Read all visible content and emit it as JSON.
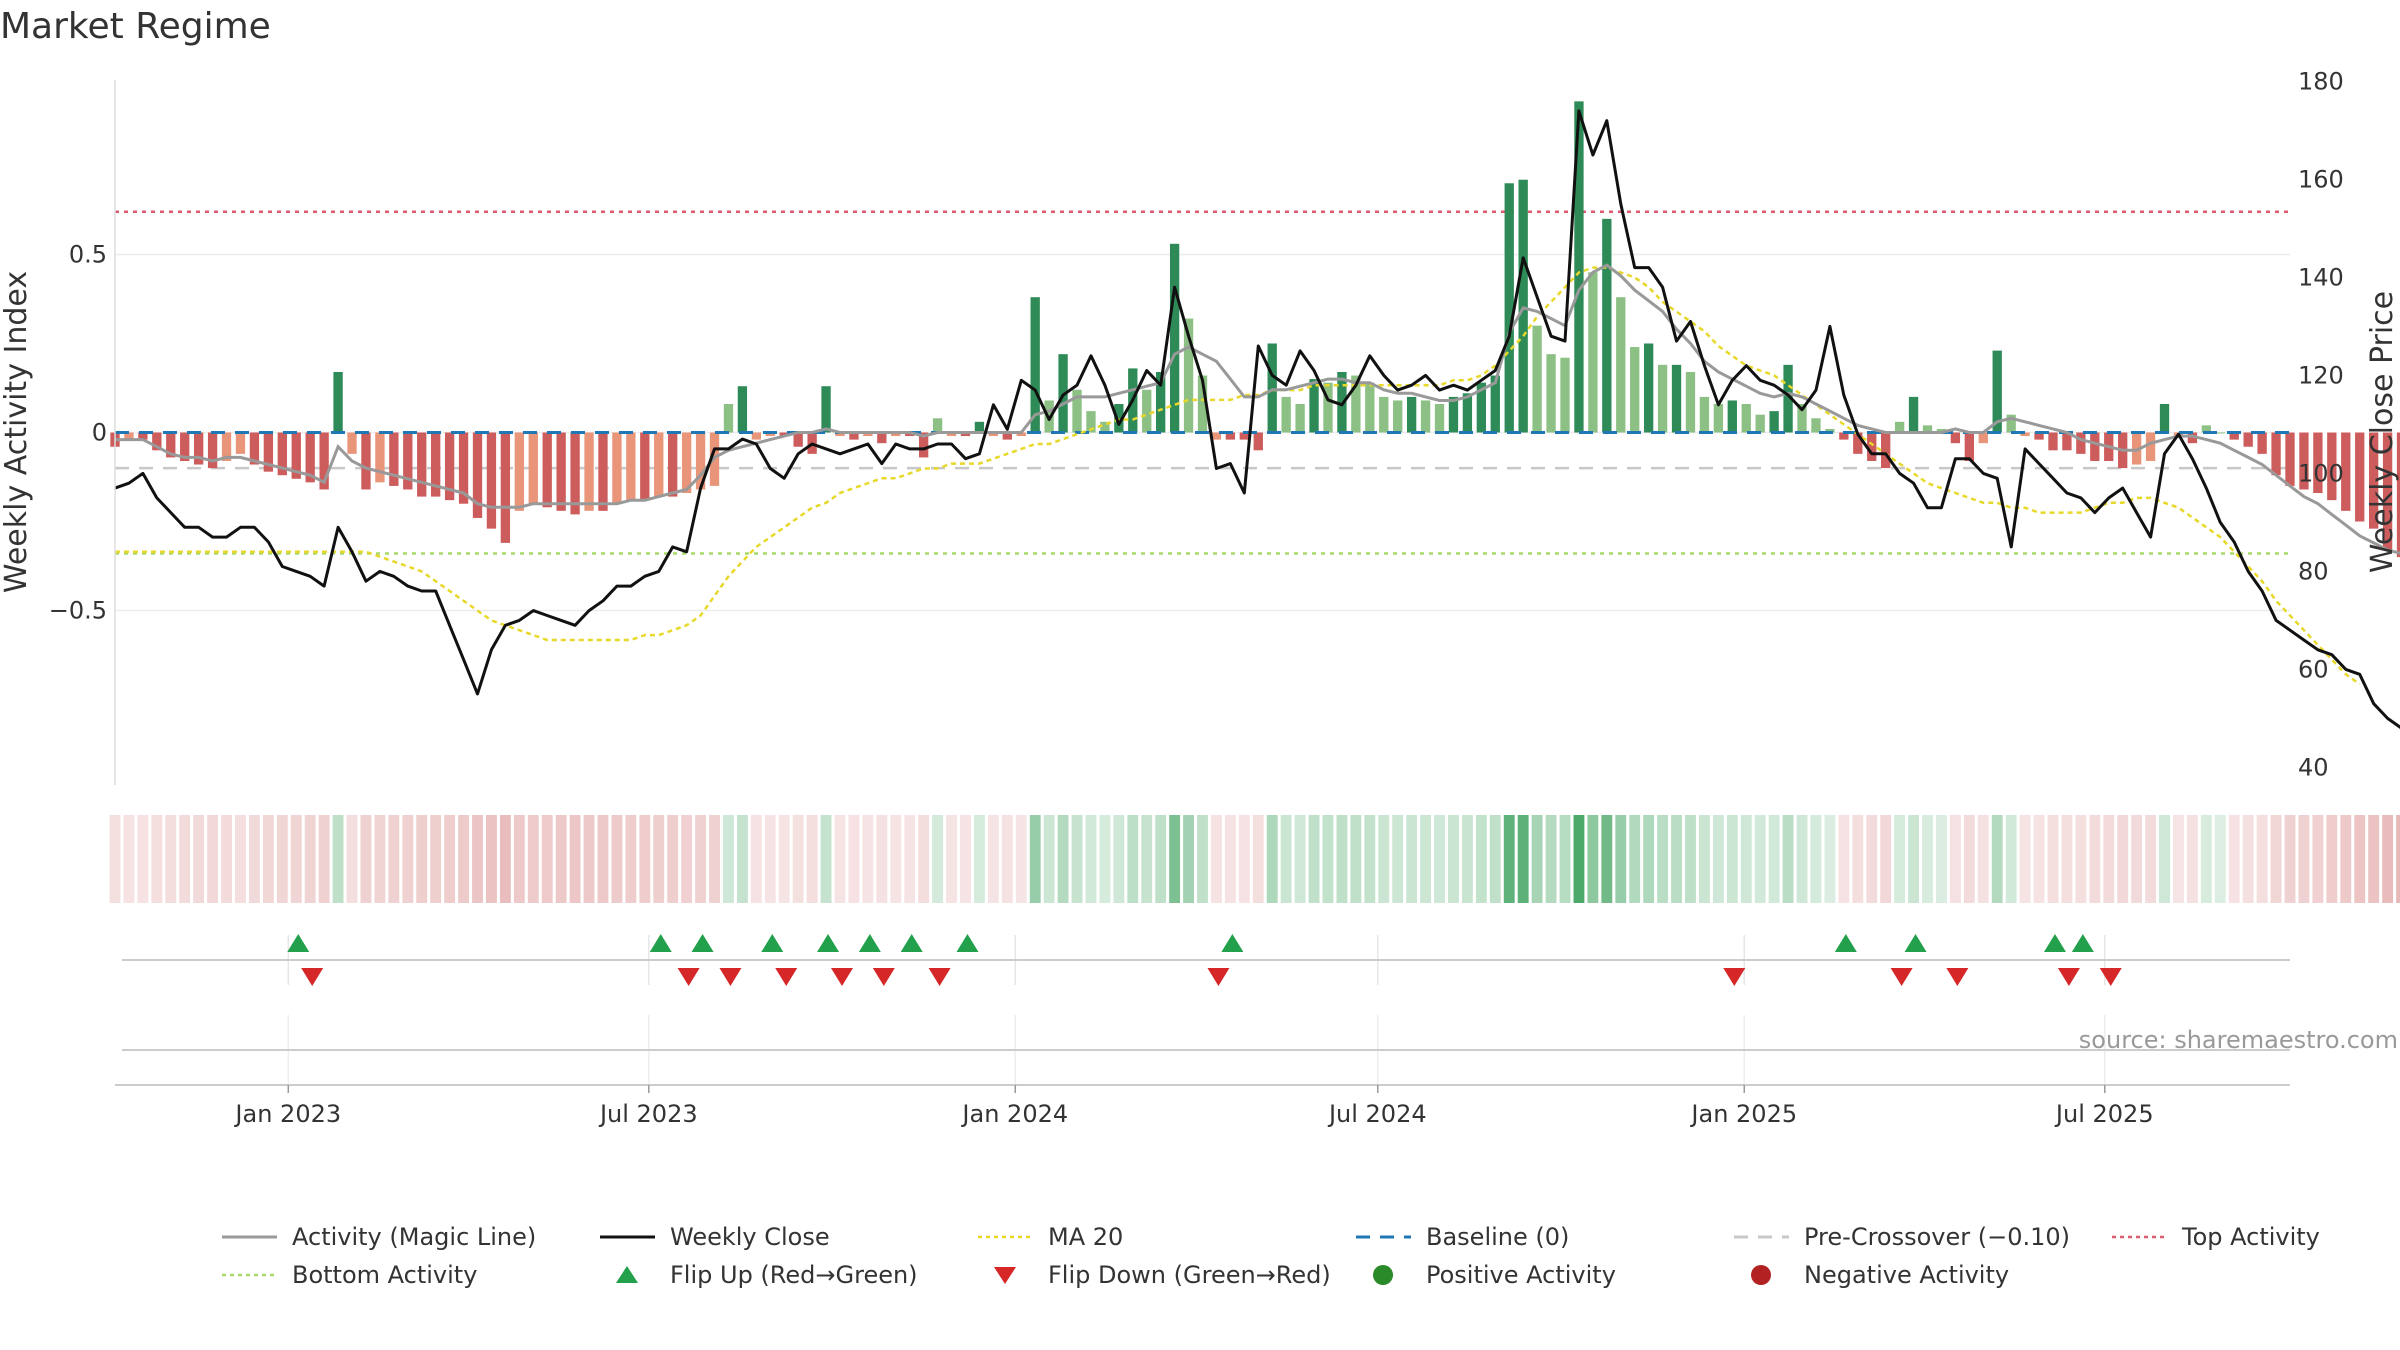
{
  "title": "Market Regime",
  "source_label": "source: sharemaestro.com",
  "colors": {
    "bar_strong_green": "#2e8b57",
    "bar_light_green": "#8cc084",
    "bar_strong_red": "#cd5c5c",
    "bar_light_red": "#e8957a",
    "close_line": "#111111",
    "magic_line": "#999999",
    "ma_line": "#e8d82a",
    "baseline": "#1f77b4",
    "pre_crossover": "#c8c8c8",
    "top_activity": "#dc5a6e",
    "bottom_activity": "#a8d86a",
    "flip_up": "#22a04b",
    "flip_down": "#d62728",
    "strip_green": "#3aa05a",
    "strip_red": "#d07070"
  },
  "chart_data": {
    "type": "bar",
    "title": "Market Regime",
    "ylabel_left": "Weekly Activity Index",
    "ylabel_right": "Weekly Close Price",
    "ylim_left": [
      -0.99,
      0.99
    ],
    "ylim_right": [
      36.4,
      180.3
    ],
    "yticks_left": [
      {
        "value": 0.5,
        "label": "0.5"
      },
      {
        "value": 0,
        "label": "0"
      },
      {
        "value": -0.5,
        "label": "−0.5"
      }
    ],
    "yticks_right": [
      {
        "value": 180,
        "label": "180"
      },
      {
        "value": 160,
        "label": "160"
      },
      {
        "value": 140,
        "label": "140"
      },
      {
        "value": 120,
        "label": "120"
      },
      {
        "value": 100,
        "label": "100"
      },
      {
        "value": 80,
        "label": "80"
      },
      {
        "value": 60,
        "label": "60"
      },
      {
        "value": 40,
        "label": "40"
      }
    ],
    "x_date_range": [
      "2022-10-06",
      "2025-10-02"
    ],
    "xticks": [
      {
        "date": "2023-01-01",
        "label": "Jan 2023"
      },
      {
        "date": "2023-07-01",
        "label": "Jul 2023"
      },
      {
        "date": "2024-01-01",
        "label": "Jan 2024"
      },
      {
        "date": "2024-07-01",
        "label": "Jul 2024"
      },
      {
        "date": "2025-01-01",
        "label": "Jan 2025"
      },
      {
        "date": "2025-07-01",
        "label": "Jul 2025"
      }
    ],
    "reference_lines": {
      "baseline": 0,
      "pre_crossover": -0.1,
      "top_activity": 0.62,
      "bottom_activity": -0.34
    },
    "series": [
      {
        "name": "Weekly Activity Index",
        "start": "2022-10-06",
        "step_days": 7,
        "values": [
          -0.04,
          -0.02,
          -0.02,
          -0.05,
          -0.07,
          -0.08,
          -0.09,
          -0.1,
          -0.08,
          -0.06,
          -0.09,
          -0.11,
          -0.12,
          -0.13,
          -0.14,
          -0.16,
          0.17,
          -0.06,
          -0.16,
          -0.14,
          -0.15,
          -0.16,
          -0.18,
          -0.18,
          -0.19,
          -0.2,
          -0.24,
          -0.27,
          -0.31,
          -0.22,
          -0.2,
          -0.21,
          -0.22,
          -0.23,
          -0.22,
          -0.22,
          -0.2,
          -0.19,
          -0.19,
          -0.18,
          -0.18,
          -0.17,
          -0.16,
          -0.15,
          0.08,
          0.13,
          -0.02,
          -0.01,
          -0.01,
          -0.04,
          -0.06,
          0.13,
          -0.01,
          -0.02,
          -0.01,
          -0.03,
          -0.01,
          -0.01,
          -0.07,
          0.04,
          -0.01,
          -0.01,
          0.03,
          -0.01,
          -0.02,
          -0.01,
          0.38,
          0.09,
          0.22,
          0.12,
          0.06,
          0.03,
          0.08,
          0.18,
          0.12,
          0.17,
          0.53,
          0.32,
          0.16,
          -0.02,
          -0.02,
          -0.02,
          -0.05,
          0.25,
          0.1,
          0.08,
          0.15,
          0.14,
          0.17,
          0.16,
          0.14,
          0.1,
          0.09,
          0.1,
          0.09,
          0.08,
          0.1,
          0.11,
          0.14,
          0.16,
          0.7,
          0.71,
          0.3,
          0.22,
          0.21,
          0.93,
          0.45,
          0.6,
          0.38,
          0.24,
          0.25,
          0.19,
          0.19,
          0.17,
          0.1,
          0.08,
          0.09,
          0.08,
          0.05,
          0.06,
          0.19,
          0.08,
          0.04,
          0.01,
          -0.02,
          -0.06,
          -0.08,
          -0.1,
          0.03,
          0.1,
          0.02,
          0.01,
          -0.03,
          -0.08,
          -0.03,
          0.23,
          0.05,
          -0.01,
          -0.02,
          -0.05,
          -0.05,
          -0.06,
          -0.08,
          -0.08,
          -0.1,
          -0.09,
          -0.08,
          0.08,
          -0.01,
          -0.03,
          0.02,
          0.0,
          -0.02,
          -0.04,
          -0.06,
          -0.12,
          -0.15,
          -0.16,
          -0.17,
          -0.19,
          -0.22,
          -0.25,
          -0.27,
          -0.33,
          -0.35,
          -0.38,
          -0.39,
          -0.38
        ]
      },
      {
        "name": "Weekly Close",
        "start": "2022-10-06",
        "step_days": 7,
        "values": [
          97,
          98,
          100,
          95,
          92,
          89,
          89,
          87,
          87,
          89,
          89,
          86,
          81,
          80,
          79,
          77,
          89,
          84,
          78,
          80,
          79,
          77,
          76,
          76,
          69,
          62,
          55,
          64,
          69,
          70,
          72,
          71,
          70,
          69,
          72,
          74,
          77,
          77,
          79,
          80,
          85,
          84,
          97,
          105,
          105,
          107,
          106,
          101,
          99,
          104,
          106,
          105,
          104,
          105,
          106,
          102,
          106,
          105,
          105,
          106,
          106,
          103,
          104,
          114,
          109,
          119,
          117,
          111,
          116,
          118,
          124,
          118,
          110,
          115,
          121,
          118,
          138,
          128,
          119,
          101,
          102,
          96,
          126,
          120,
          118,
          125,
          121,
          115,
          114,
          118,
          124,
          120,
          117,
          118,
          120,
          117,
          118,
          117,
          119,
          121,
          128,
          144,
          136,
          128,
          127,
          174,
          165,
          172,
          155,
          142,
          142,
          138,
          127,
          131,
          122,
          114,
          119,
          122,
          119,
          118,
          116,
          113,
          117,
          130,
          116,
          108,
          104,
          104,
          100,
          98,
          93,
          93,
          103,
          103,
          100,
          99,
          85,
          105,
          102,
          99,
          96,
          95,
          92,
          95,
          97,
          92,
          87,
          104,
          108,
          103,
          97,
          90,
          86,
          80,
          76,
          70,
          68,
          66,
          64,
          63,
          60,
          59,
          53,
          50,
          48,
          46,
          45
        ]
      },
      {
        "name": "Activity (Magic Line)",
        "start": "2022-10-06",
        "step_days": 7,
        "values": [
          -0.02,
          -0.02,
          -0.02,
          -0.04,
          -0.06,
          -0.07,
          -0.07,
          -0.08,
          -0.07,
          -0.07,
          -0.08,
          -0.09,
          -0.1,
          -0.11,
          -0.12,
          -0.14,
          -0.04,
          -0.08,
          -0.1,
          -0.11,
          -0.12,
          -0.13,
          -0.14,
          -0.15,
          -0.16,
          -0.17,
          -0.2,
          -0.21,
          -0.21,
          -0.21,
          -0.2,
          -0.2,
          -0.2,
          -0.2,
          -0.2,
          -0.2,
          -0.2,
          -0.19,
          -0.19,
          -0.18,
          -0.17,
          -0.16,
          -0.12,
          -0.07,
          -0.05,
          -0.04,
          -0.03,
          -0.02,
          -0.01,
          0.0,
          0.0,
          0.01,
          0.0,
          0.0,
          0.0,
          0.0,
          0.0,
          0.0,
          -0.01,
          0.0,
          0.0,
          0.0,
          0.0,
          0.0,
          0.0,
          0.0,
          0.05,
          0.06,
          0.08,
          0.1,
          0.1,
          0.1,
          0.11,
          0.12,
          0.13,
          0.14,
          0.22,
          0.24,
          0.22,
          0.2,
          0.15,
          0.1,
          0.1,
          0.12,
          0.12,
          0.13,
          0.14,
          0.15,
          0.15,
          0.14,
          0.14,
          0.12,
          0.11,
          0.11,
          0.1,
          0.09,
          0.09,
          0.1,
          0.12,
          0.14,
          0.28,
          0.35,
          0.34,
          0.32,
          0.3,
          0.4,
          0.45,
          0.47,
          0.44,
          0.4,
          0.37,
          0.34,
          0.29,
          0.25,
          0.2,
          0.17,
          0.15,
          0.13,
          0.11,
          0.1,
          0.11,
          0.1,
          0.08,
          0.06,
          0.04,
          0.02,
          0.01,
          0.0,
          0.0,
          0.0,
          0.0,
          0.0,
          0.01,
          0.0,
          0.0,
          0.03,
          0.04,
          0.03,
          0.02,
          0.01,
          0.0,
          -0.02,
          -0.03,
          -0.04,
          -0.05,
          -0.05,
          -0.03,
          -0.02,
          -0.01,
          -0.01,
          -0.02,
          -0.03,
          -0.05,
          -0.07,
          -0.09,
          -0.12,
          -0.15,
          -0.18,
          -0.2,
          -0.23,
          -0.26,
          -0.29,
          -0.31,
          -0.33,
          -0.34,
          -0.35
        ]
      },
      {
        "name": "MA 20",
        "start": "2022-10-06",
        "step_days": 7,
        "values": [
          84,
          84,
          84,
          84,
          84,
          84,
          84,
          84,
          84,
          84,
          84,
          84,
          84,
          84,
          84,
          84,
          84,
          84,
          84,
          83,
          82,
          81,
          80,
          78,
          76,
          74,
          72,
          70,
          69,
          68,
          67,
          66,
          66,
          66,
          66,
          66,
          66,
          66,
          67,
          67,
          68,
          69,
          71,
          75,
          79,
          82,
          85,
          87,
          89,
          91,
          93,
          94,
          96,
          97,
          98,
          99,
          99,
          100,
          101,
          101,
          102,
          102,
          102,
          103,
          104,
          105,
          106,
          106,
          107,
          108,
          109,
          110,
          111,
          111,
          112,
          113,
          114,
          115,
          115,
          115,
          115,
          116,
          116,
          117,
          117,
          117,
          118,
          118,
          118,
          118,
          118,
          118,
          118,
          118,
          118,
          118,
          119,
          119,
          120,
          122,
          125,
          128,
          132,
          135,
          138,
          141,
          142,
          142,
          141,
          140,
          138,
          135,
          133,
          131,
          129,
          126,
          124,
          122,
          121,
          120,
          118,
          116,
          114,
          112,
          110,
          108,
          106,
          104,
          102,
          100,
          98,
          97,
          96,
          95,
          94,
          94,
          93,
          93,
          92,
          92,
          92,
          92,
          93,
          94,
          94,
          95,
          95,
          94,
          93,
          91,
          89,
          87,
          84,
          81,
          78,
          74,
          71,
          68,
          65,
          62,
          59,
          57
        ]
      },
      {
        "name": "Flip Up (Red→Green)",
        "dates": [
          "2023-01-06",
          "2023-07-07",
          "2023-07-28",
          "2023-09-01",
          "2023-09-29",
          "2023-10-20",
          "2023-11-10",
          "2023-12-08",
          "2024-04-19",
          "2025-02-21",
          "2025-03-28",
          "2025-06-06",
          "2025-06-20"
        ]
      },
      {
        "name": "Flip Down (Green→Red)",
        "dates": [
          "2023-01-13",
          "2023-07-21",
          "2023-08-11",
          "2023-09-08",
          "2023-10-06",
          "2023-10-27",
          "2023-11-24",
          "2024-04-12",
          "2024-12-27",
          "2025-03-21",
          "2025-04-18",
          "2025-06-13",
          "2025-07-04"
        ]
      }
    ],
    "legend": {
      "placement": "bottom",
      "entries": [
        {
          "label": "Activity (Magic Line)",
          "symbol": "line-gray"
        },
        {
          "label": "Weekly Close",
          "symbol": "line-black"
        },
        {
          "label": "MA 20",
          "symbol": "dotted-yellow"
        },
        {
          "label": "Baseline (0)",
          "symbol": "dashed-blue"
        },
        {
          "label": "Pre-Crossover (−0.10)",
          "symbol": "dashed-gray"
        },
        {
          "label": "Top Activity",
          "symbol": "dotted-red"
        },
        {
          "label": "Bottom Activity",
          "symbol": "dotted-green"
        },
        {
          "label": "Flip Up (Red→Green)",
          "symbol": "triangle-up"
        },
        {
          "label": "Flip Down (Green→Red)",
          "symbol": "triangle-down"
        },
        {
          "label": "Positive Activity",
          "symbol": "dot-green"
        },
        {
          "label": "Negative Activity",
          "symbol": "dot-red"
        }
      ]
    }
  }
}
